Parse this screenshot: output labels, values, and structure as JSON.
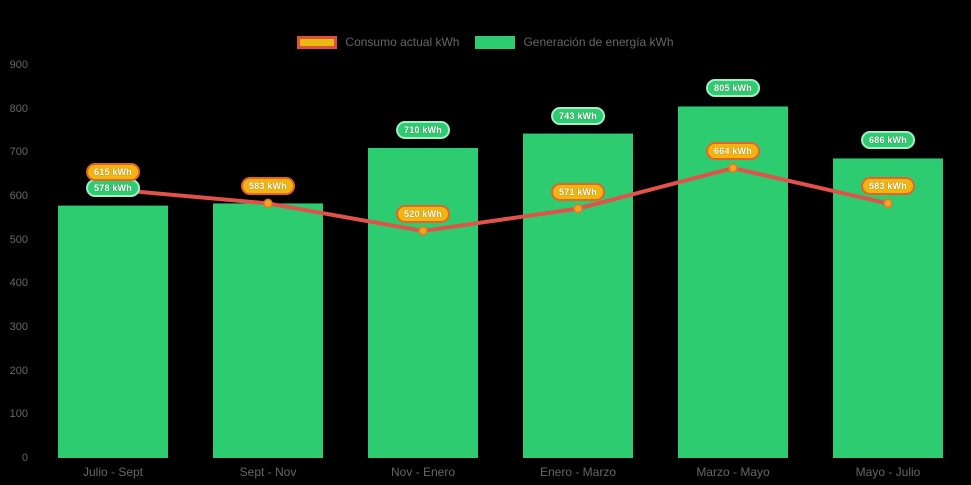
{
  "legend": [
    {
      "label": "Consumo actual kWh",
      "swatch_fill": "#eaba10",
      "swatch_border": "#e0503f"
    },
    {
      "label": "Generación de energía kWh",
      "swatch_fill": "#2ecc71",
      "swatch_border": "#2ecc71"
    }
  ],
  "chart_data": {
    "type": "bar",
    "title": "",
    "categories": [
      "Julio - Sept",
      "Sept - Nov",
      "Nov - Enero",
      "Enero - Marzo",
      "Marzo - Mayo",
      "Mayo - Julio"
    ],
    "series": [
      {
        "name": "Generación de energía kWh",
        "type": "bar",
        "color": "#2ecc71",
        "values": [
          578,
          583,
          710,
          743,
          805,
          686
        ],
        "label_suffix": " kWh",
        "label_visible": [
          true,
          false,
          true,
          true,
          true,
          true
        ],
        "label_bg": "#2ecc71",
        "label_border": "#a4ecc4"
      },
      {
        "name": "Consumo actual kWh",
        "type": "line",
        "color": "#e0524a",
        "point_fill": "#f2a71b",
        "point_border": "#e2762f",
        "values": [
          615,
          583,
          520,
          571,
          664,
          583
        ],
        "label_suffix": " kWh",
        "label_visible": [
          true,
          true,
          true,
          true,
          true,
          true
        ],
        "label_bg": "#f1b60d",
        "label_border": "#e8622d"
      }
    ],
    "ylim": [
      0,
      900
    ],
    "y_ticks": [
      0,
      100,
      200,
      300,
      400,
      500,
      600,
      700,
      800,
      900
    ],
    "grid": false,
    "legend_position": "top",
    "background": "#000000",
    "axis_text_color": "#666666"
  }
}
